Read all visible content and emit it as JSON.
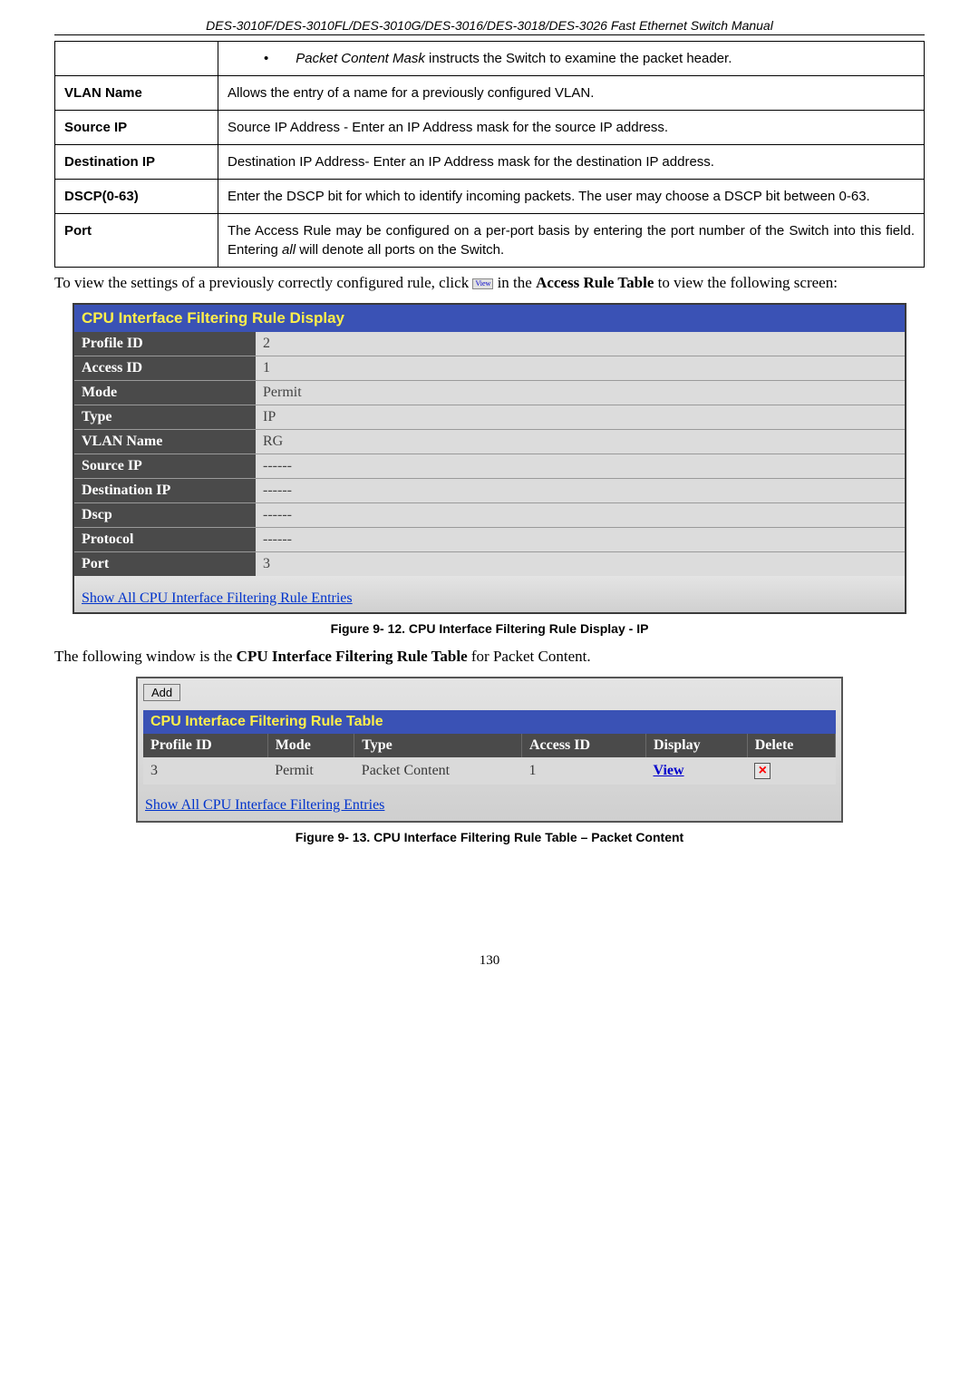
{
  "header": "DES-3010F/DES-3010FL/DES-3010G/DES-3016/DES-3018/DES-3026 Fast Ethernet Switch Manual",
  "params": {
    "rows": [
      {
        "label": "",
        "desc_html": "Packet Content Mask instructs the Switch to examine the packet header.",
        "bullet": true,
        "italic_prefix": "Packet Content Mask"
      },
      {
        "label": "VLAN Name",
        "desc": "Allows the entry of a name for a previously configured VLAN."
      },
      {
        "label": "Source IP",
        "desc": "Source IP Address - Enter an IP Address mask for the source IP address."
      },
      {
        "label": "Destination IP",
        "desc": "Destination IP Address- Enter an IP Address mask for the destination IP address."
      },
      {
        "label": "DSCP(0-63)",
        "desc": "Enter the DSCP bit for which to identify incoming packets. The user may choose a DSCP bit between 0-63."
      },
      {
        "label": "Port",
        "desc_html": "The Access Rule may be configured on a per-port basis by entering the port number of the Switch into this field. Entering <i>all</i> will denote all ports on the Switch."
      }
    ]
  },
  "para1_a": "To view the settings of a previously correctly configured rule, click ",
  "para1_b": " in the ",
  "para1_bold": "Access Rule Table",
  "para1_c": " to view the following screen:",
  "display": {
    "title": "CPU Interface Filtering Rule Display",
    "rows": [
      {
        "k": "Profile ID",
        "v": "2"
      },
      {
        "k": "Access ID",
        "v": "1"
      },
      {
        "k": "Mode",
        "v": "Permit"
      },
      {
        "k": "Type",
        "v": "IP"
      },
      {
        "k": "VLAN Name",
        "v": "RG"
      },
      {
        "k": "Source IP",
        "v": "------"
      },
      {
        "k": "Destination IP",
        "v": "------"
      },
      {
        "k": "Dscp",
        "v": "------"
      },
      {
        "k": "Protocol",
        "v": "------"
      },
      {
        "k": "Port",
        "v": "3"
      }
    ],
    "footer_link": "Show All CPU Interface Filtering Rule Entries"
  },
  "figcap1": "Figure 9- 12. CPU Interface Filtering Rule Display - IP",
  "para2_a": "The following window is the ",
  "para2_bold": "CPU Interface Filtering Rule Table",
  "para2_b": " for Packet Content.",
  "ruletable": {
    "add_label": "Add",
    "title": "CPU Interface Filtering Rule Table",
    "columns": [
      "Profile ID",
      "Mode",
      "Type",
      "Access ID",
      "Display",
      "Delete"
    ],
    "row": {
      "profile": "3",
      "mode": "Permit",
      "type": "Packet Content",
      "access": "1",
      "display": "View"
    },
    "footer_link": "Show All CPU Interface Filtering Entries"
  },
  "figcap2": "Figure 9- 13. CPU Interface Filtering Rule Table – Packet Content",
  "pagenum": "130"
}
